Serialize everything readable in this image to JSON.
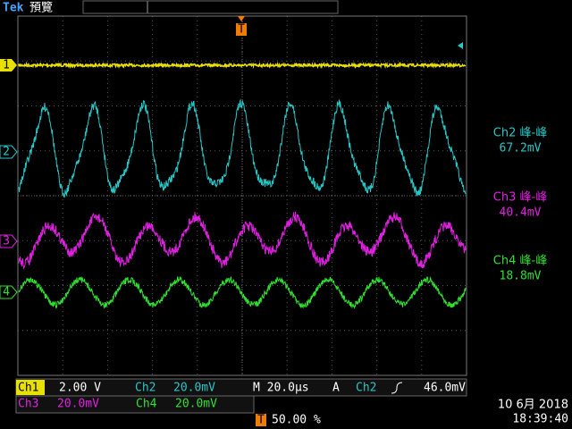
{
  "header": {
    "brand": "Tek",
    "mode": "預覽"
  },
  "trigger_marker": "T",
  "channel_markers": [
    "1",
    "2",
    "3",
    "4"
  ],
  "measurements": [
    {
      "label": "Ch2 峰-峰",
      "value": "67.2mV"
    },
    {
      "label": "Ch3 峰-峰",
      "value": "40.4mV"
    },
    {
      "label": "Ch4 峰-峰",
      "value": "18.8mV"
    }
  ],
  "status": {
    "ch1": {
      "name": "Ch1",
      "scale": "2.00 V"
    },
    "ch2": {
      "name": "Ch2",
      "scale": "20.0mV"
    },
    "timebase": "M 20.0µs",
    "trigger": {
      "mode": "A",
      "source": "Ch2",
      "level": "46.0mV"
    },
    "ch3": {
      "name": "Ch3",
      "scale": "20.0mV"
    },
    "ch4": {
      "name": "Ch4",
      "scale": "20.0mV"
    },
    "trigger_position": {
      "marker": "T",
      "value": "50.00 %"
    },
    "date": "10 6月 2018",
    "time": "18:39:40"
  }
}
